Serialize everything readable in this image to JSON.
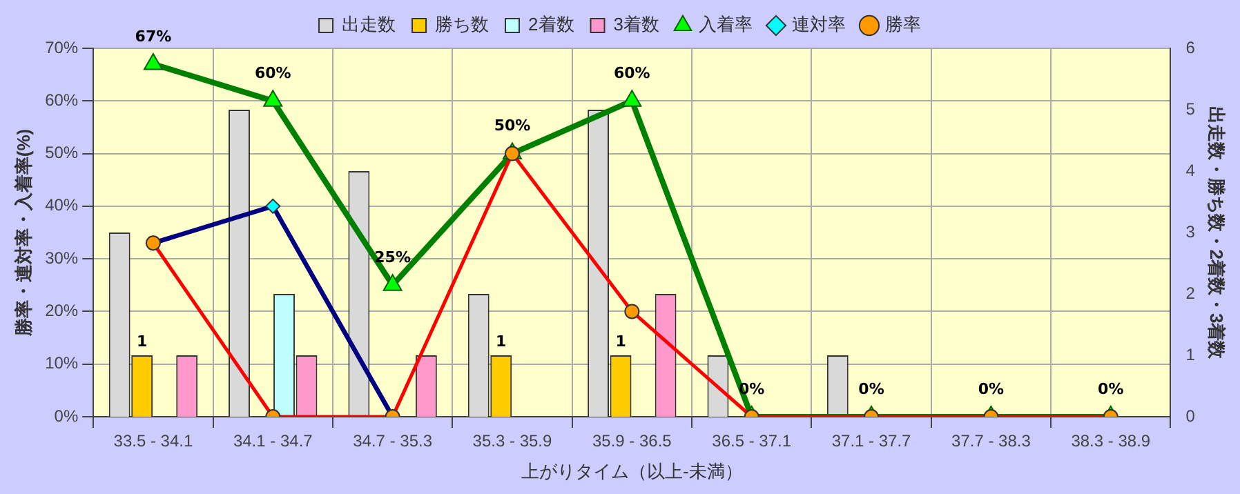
{
  "chart_data": {
    "type": "bar",
    "xlabel": "上がりタイム（以上-未満）",
    "ylabel": "勝率・連対率・入着率(%)",
    "y2label": "出走数・勝ち数・2着数・3着数",
    "categories": [
      "33.5 - 34.1",
      "34.1 - 34.7",
      "34.7 - 35.3",
      "35.3 - 35.9",
      "35.9 - 36.5",
      "36.5 - 37.1",
      "37.1 - 37.7",
      "37.7 - 38.3",
      "38.3 - 38.9"
    ],
    "series": [
      {
        "name": "出走数",
        "axis": "y2",
        "color": "#d9d9d9",
        "values": [
          3,
          5,
          4,
          2,
          5,
          1,
          1,
          0,
          0
        ]
      },
      {
        "name": "勝ち数",
        "axis": "y2",
        "color": "#ffcc00",
        "values": [
          1,
          0,
          0,
          1,
          1,
          0,
          0,
          0,
          0
        ],
        "value_labels": [
          "1",
          null,
          null,
          "1",
          "1",
          null,
          null,
          null,
          null
        ]
      },
      {
        "name": "2着数",
        "axis": "y2",
        "color": "#c0ffff",
        "values": [
          0,
          2,
          0,
          0,
          0,
          0,
          0,
          0,
          0
        ]
      },
      {
        "name": "3着数",
        "axis": "y2",
        "color": "#ff99cc",
        "values": [
          1,
          1,
          1,
          0,
          2,
          0,
          0,
          0,
          0
        ]
      },
      {
        "name": "入着率",
        "type": "line",
        "color": "#008000",
        "marker": "triangle",
        "values": [
          67,
          60,
          25,
          50,
          60,
          0,
          0,
          0,
          0
        ],
        "value_labels": [
          "67%",
          "60%",
          "25%",
          "50%",
          "60%",
          "0%",
          "0%",
          "0%",
          "0%"
        ]
      },
      {
        "name": "連対率",
        "type": "line",
        "color": "#000080",
        "marker": "diamond",
        "values": [
          33,
          40,
          0,
          null,
          null,
          null,
          null,
          null,
          null
        ]
      },
      {
        "name": "勝率",
        "type": "line",
        "color": "#ff0000",
        "marker": "circle",
        "values": [
          33,
          0,
          0,
          50,
          20,
          0,
          0,
          0,
          0
        ]
      }
    ],
    "ylim": [
      0,
      70
    ],
    "yticks": [
      {
        "value": 0,
        "label": "0%"
      },
      {
        "value": 10,
        "label": "10%"
      },
      {
        "value": 20,
        "label": "20%"
      },
      {
        "value": 30,
        "label": "30%"
      },
      {
        "value": 40,
        "label": "40%"
      },
      {
        "value": 50,
        "label": "50%"
      },
      {
        "value": 60,
        "label": "60%"
      },
      {
        "value": 70,
        "label": "70%"
      }
    ],
    "y2lim": [
      0,
      6
    ],
    "y2ticks": [
      0,
      1,
      2,
      3,
      4,
      5,
      6
    ],
    "grid": true,
    "legend": "top"
  }
}
